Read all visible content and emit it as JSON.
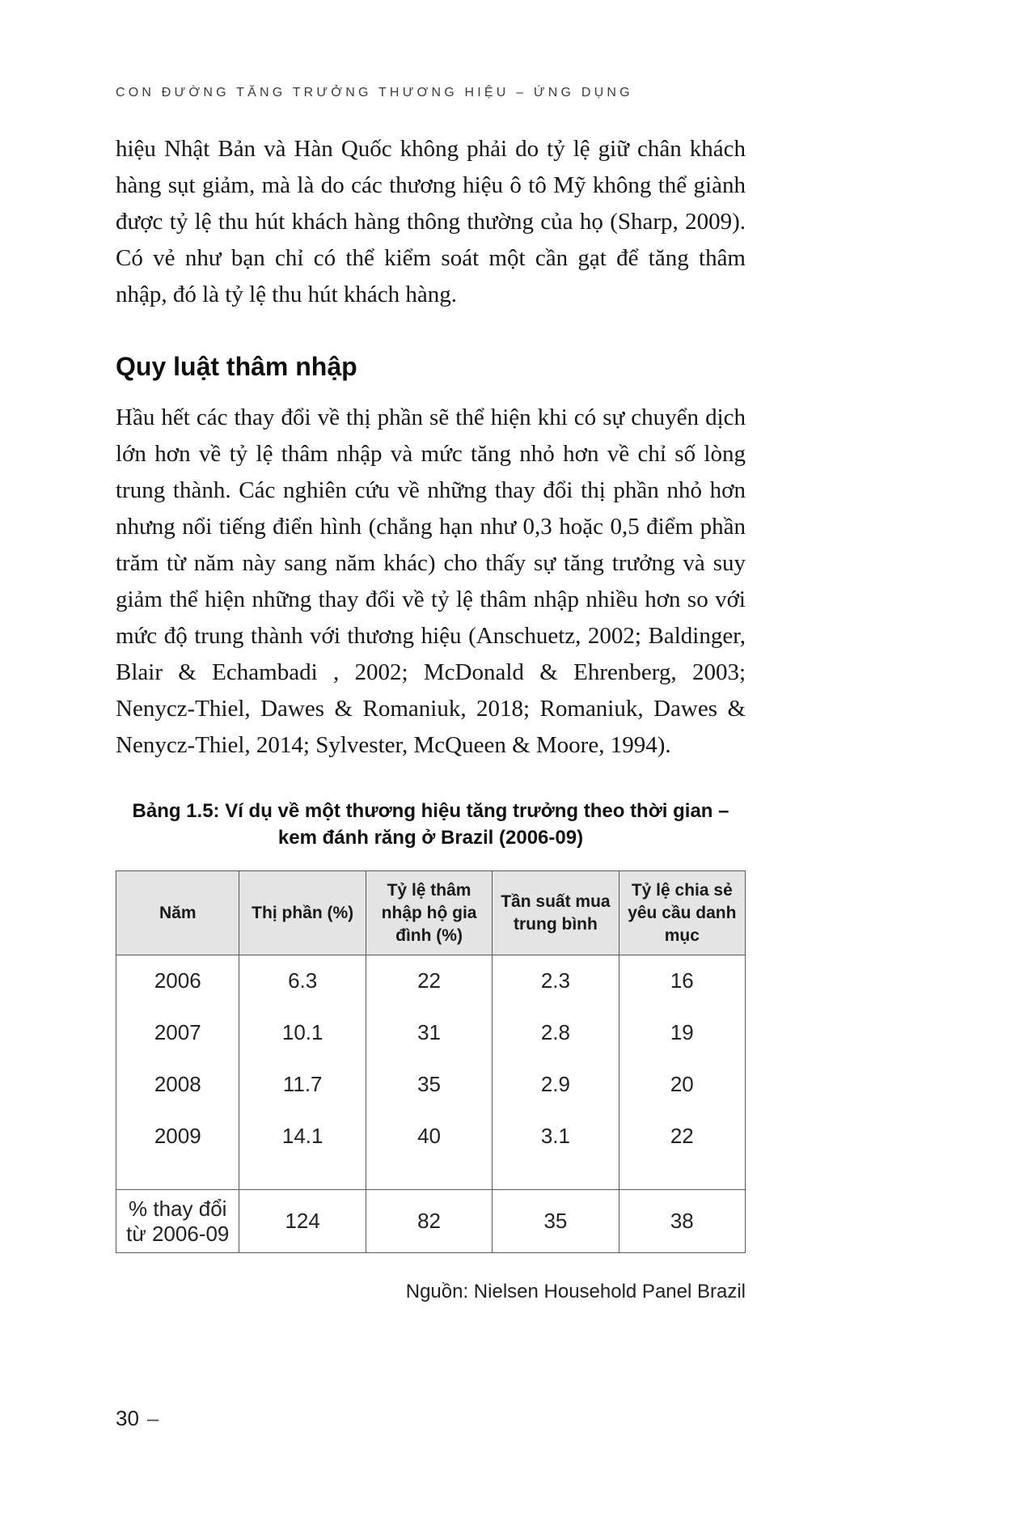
{
  "running_head": "CON ĐƯỜNG TĂNG TRƯỞNG THƯƠNG HIỆU – ỨNG DỤNG",
  "paragraph_1": "hiệu Nhật Bản và Hàn Quốc không phải do tỷ lệ giữ chân khách hàng sụt giảm, mà là do các thương hiệu ô tô Mỹ không thể giành được tỷ lệ thu hút khách hàng thông thường của họ (Sharp, 2009). Có vẻ như bạn chỉ có thể kiểm soát một cần gạt để tăng thâm nhập, đó là tỷ lệ thu hút khách hàng.",
  "section": {
    "heading": "Quy luật thâm nhập",
    "body": "Hầu hết các thay đổi về thị phần sẽ thể hiện khi có sự chuyển dịch lớn hơn về tỷ lệ thâm nhập và mức tăng nhỏ hơn về chỉ số lòng trung thành. Các nghiên cứu về những thay đổi thị phần nhỏ hơn nhưng nổi tiếng điển hình (chẳng hạn như 0,3 hoặc 0,5 điểm phần trăm từ năm này sang năm khác) cho thấy sự tăng trưởng và suy giảm thể hiện những thay đổi về tỷ lệ thâm nhập nhiều hơn so với mức độ trung thành với thương hiệu (Anschuetz, 2002; Baldinger, Blair & Echambadi , 2002; McDonald & Ehrenberg, 2003; Nenycz-Thiel, Dawes & Romaniuk, 2018; Romaniuk, Dawes & Nenycz-Thiel, 2014; Sylvester, McQueen & Moore, 1994)."
  },
  "table": {
    "caption_line1": "Bảng 1.5: Ví dụ về một thương hiệu tăng trưởng theo thời gian –",
    "caption_line2": "kem đánh răng ở Brazil (2006-09)",
    "headers": [
      "Năm",
      "Thị phần (%)",
      "Tỷ lệ thâm nhập hộ gia đình (%)",
      "Tần suất mua trung bình",
      "Tỷ lệ chia sẻ yêu cầu danh mục"
    ],
    "rows": [
      [
        "2006",
        "6.3",
        "22",
        "2.3",
        "16"
      ],
      [
        "2007",
        "10.1",
        "31",
        "2.8",
        "19"
      ],
      [
        "2008",
        "11.7",
        "35",
        "2.9",
        "20"
      ],
      [
        "2009",
        "14.1",
        "40",
        "3.1",
        "22"
      ]
    ],
    "summary_row": [
      "% thay đổi từ 2006-09",
      "124",
      "82",
      "35",
      "38"
    ],
    "source": "Nguồn: Nielsen Household Panel Brazil"
  },
  "page_number": "30",
  "page_number_dash": "–"
}
